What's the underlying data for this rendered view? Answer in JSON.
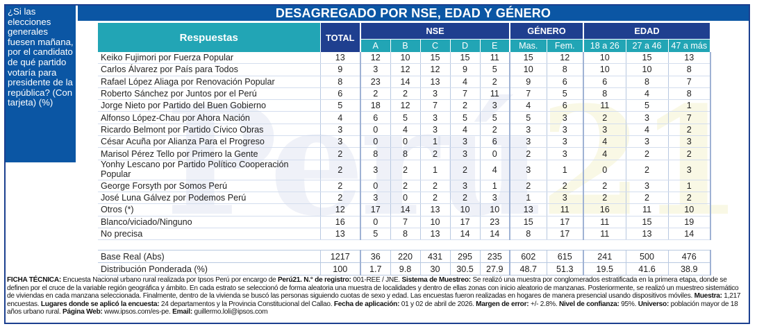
{
  "question": "¿Si las elecciones generales fuesen mañana, por el candidato de qué partido votaría para presidente de la república? (Con tarjeta) (%)",
  "watermark": {
    "brand": "Perú",
    "number": "21"
  },
  "chart_data": {
    "type": "table",
    "title": "DESAGREGADO POR NSE, EDAD Y GÉNERO",
    "row_header": "Respuestas",
    "total_header": "TOTAL",
    "groups": [
      {
        "name": "NSE",
        "columns": [
          "A",
          "B",
          "C",
          "D",
          "E"
        ]
      },
      {
        "name": "GÉNERO",
        "columns": [
          "Mas.",
          "Fem."
        ]
      },
      {
        "name": "EDAD",
        "columns": [
          "18 a 26",
          "27 a 46",
          "47 a más"
        ]
      }
    ],
    "rows": [
      {
        "label": "Keiko Fujimori por Fuerza Popular",
        "values": [
          13,
          12,
          10,
          15,
          15,
          11,
          15,
          12,
          10,
          15,
          13
        ]
      },
      {
        "label": "Carlos Álvarez por País para Todos",
        "values": [
          9,
          3,
          12,
          12,
          9,
          5,
          10,
          8,
          10,
          10,
          8
        ]
      },
      {
        "label": "Rafael López Aliaga por Renovación Popular",
        "values": [
          8,
          23,
          14,
          13,
          4,
          2,
          9,
          6,
          6,
          8,
          7
        ]
      },
      {
        "label": "Roberto Sánchez por Juntos por el Perú",
        "values": [
          6,
          2,
          2,
          3,
          7,
          11,
          7,
          5,
          8,
          4,
          8
        ]
      },
      {
        "label": "Jorge Nieto por Partido del Buen Gobierno",
        "values": [
          5,
          18,
          12,
          7,
          2,
          3,
          4,
          6,
          11,
          5,
          1
        ]
      },
      {
        "label": "Alfonso López-Chau por Ahora Nación",
        "values": [
          4,
          6,
          5,
          3,
          5,
          5,
          5,
          3,
          2,
          3,
          7
        ]
      },
      {
        "label": "Ricardo Belmont por Partido Cívico Obras",
        "values": [
          3,
          0,
          4,
          3,
          4,
          2,
          3,
          3,
          3,
          4,
          2
        ]
      },
      {
        "label": "César Acuña por Alianza Para el Progreso",
        "values": [
          3,
          0,
          0,
          1,
          3,
          6,
          3,
          3,
          4,
          3,
          3
        ]
      },
      {
        "label": "Marisol Pérez Tello por Primero la Gente",
        "values": [
          2,
          8,
          8,
          2,
          3,
          0,
          2,
          3,
          4,
          2,
          2
        ]
      },
      {
        "label": "Yonhy Lescano por Partido Político Cooperación Popular",
        "values": [
          2,
          3,
          2,
          1,
          2,
          4,
          3,
          1,
          0,
          2,
          3
        ]
      },
      {
        "label": "George Forsyth por Somos Perú",
        "values": [
          2,
          0,
          2,
          2,
          3,
          1,
          2,
          2,
          2,
          3,
          1
        ]
      },
      {
        "label": "José Luna Gálvez por Podemos Perú",
        "values": [
          2,
          3,
          0,
          2,
          2,
          3,
          1,
          3,
          2,
          2,
          2
        ]
      },
      {
        "label": "Otros (*)",
        "values": [
          12,
          17,
          14,
          13,
          10,
          10,
          13,
          11,
          16,
          11,
          10
        ]
      },
      {
        "label": "Blanco/viciado/Ninguno",
        "values": [
          16,
          0,
          7,
          10,
          17,
          23,
          15,
          17,
          11,
          15,
          19
        ]
      },
      {
        "label": "No precisa",
        "values": [
          13,
          5,
          8,
          13,
          14,
          14,
          8,
          17,
          11,
          13,
          14
        ]
      }
    ],
    "footer_rows": [
      {
        "label": "Base Real (Abs)",
        "values": [
          "1217",
          "36",
          "220",
          "431",
          "295",
          "235",
          "602",
          "615",
          "241",
          "500",
          "476"
        ]
      },
      {
        "label": "Distribución Ponderada (%)",
        "values": [
          "100",
          "1.7",
          "9.8",
          "30",
          "30.5",
          "27.9",
          "48.7",
          "51.3",
          "19.5",
          "41.6",
          "38.9"
        ]
      }
    ]
  },
  "ficha_tecnica": [
    {
      "label": "FICHA TÉCNICA:",
      "text": " Encuesta Nacional urbano rural realizada por Ipsos Perú por encargo de "
    },
    {
      "label": "Perú21. N.° de registro:",
      "text": " 001-REE / JNE. "
    },
    {
      "label": "Sistema de Muestreo:",
      "text": " Se realizó una muestra por conglomerados estratificada en la primera etapa, donde se definen por el cruce de la variable región geográfica y ámbito. En cada estrato se seleccionó de forma aleatoria una muestra de localidades y dentro de ellas zonas con inicio aleatorio de manzanas. Posteriormente, se realizó un muestreo sistemático de viviendas en cada manzana seleccionada. Finalmente, dentro de la vivienda se buscó las personas siguiendo cuotas de sexo y edad. Las encuestas fueron realizadas en hogares de manera presencial usando dispositivos móviles. "
    },
    {
      "label": "Muestra:",
      "text": " 1,217 encuestas. "
    },
    {
      "label": "Lugares donde se aplicó la encuesta:",
      "text": " 24 departamentos y la Provincia Constitucional del Callao. "
    },
    {
      "label": "Fecha de aplicación:",
      "text": " 01 y 02 de abril de 2026. "
    },
    {
      "label": "Margen de error:",
      "text": " +/- 2.8%. "
    },
    {
      "label": "Nivel de confianza:",
      "text": " 95%. "
    },
    {
      "label": "Universo:",
      "text": " población mayor de 18 años urbano rural. "
    },
    {
      "label": "Página Web:",
      "text": " www.ipsos.com/es-pe. "
    },
    {
      "label": "Email:",
      "text": " guillermo.loli@ipsos.com"
    }
  ]
}
